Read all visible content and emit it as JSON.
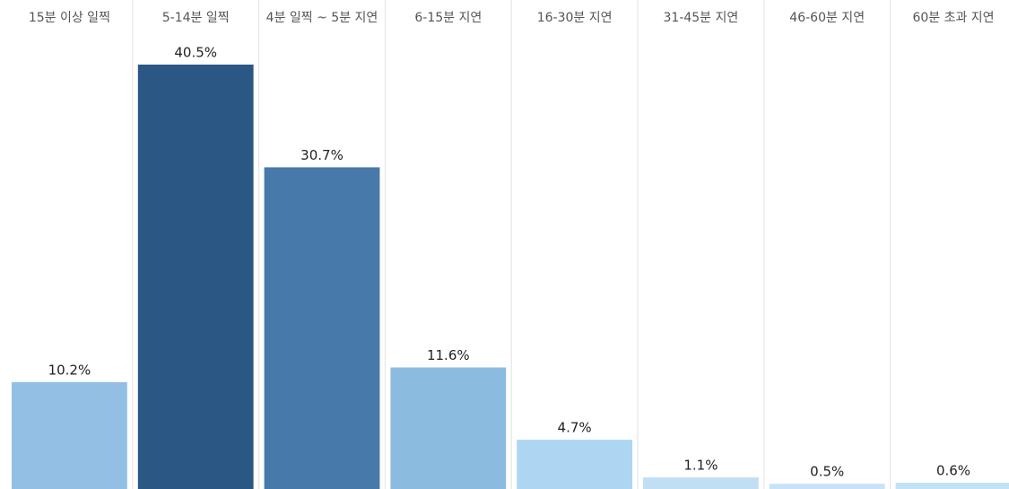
{
  "chart_data": {
    "type": "bar",
    "categories": [
      "15분 이상 일찍",
      "5-14분 일찍",
      "4분 일찍 ~ 5분 지연",
      "6-15분 지연",
      "16-30분 지연",
      "31-45분 지연",
      "46-60분 지연",
      "60분 초과 지연"
    ],
    "values": [
      10.2,
      40.5,
      30.7,
      11.6,
      4.7,
      1.1,
      0.5,
      0.6
    ],
    "value_labels": [
      "10.2%",
      "40.5%",
      "30.7%",
      "11.6%",
      "4.7%",
      "1.1%",
      "0.5%",
      "0.6%"
    ],
    "colors": [
      "#92bfe3",
      "#2a5783",
      "#4779aa",
      "#8cbbe0",
      "#acd6f1",
      "#c0def4",
      "#c8e3f5",
      "#c5e1f4"
    ]
  }
}
